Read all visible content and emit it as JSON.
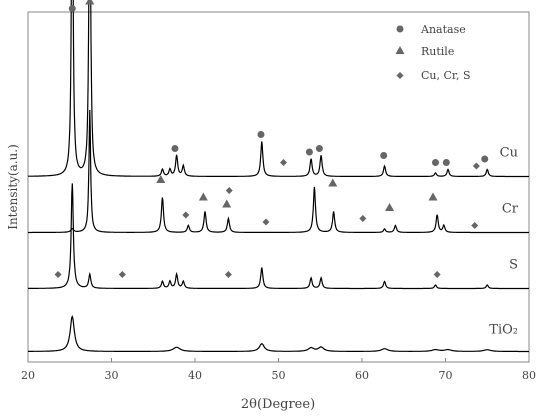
{
  "chart_data": {
    "type": "line",
    "title": "",
    "xlabel": "2θ(Degree)",
    "ylabel": "Intensity(a.u.)",
    "xlim": [
      20,
      80
    ],
    "x_ticks": [
      "20",
      "30",
      "40",
      "50",
      "60",
      "70",
      "80"
    ],
    "grid": false,
    "legend": {
      "placement": "top-right",
      "entries": [
        {
          "label": "Anatase",
          "marker": "circle"
        },
        {
          "label": "Rutile",
          "marker": "triangle"
        },
        {
          "label": "Cu, Cr, S",
          "marker": "diamond"
        }
      ]
    },
    "series": [
      {
        "name": "Cu",
        "baseline": 0.53,
        "peaks": [
          {
            "x": 25.3,
            "h": 0.97,
            "w": 0.12
          },
          {
            "x": 27.4,
            "h": 0.99,
            "w": 0.12
          },
          {
            "x": 36.1,
            "h": 0.02,
            "w": 0.15
          },
          {
            "x": 37.0,
            "h": 0.02,
            "w": 0.15
          },
          {
            "x": 37.8,
            "h": 0.06,
            "w": 0.15
          },
          {
            "x": 38.6,
            "h": 0.03,
            "w": 0.15
          },
          {
            "x": 48.0,
            "h": 0.1,
            "w": 0.15
          },
          {
            "x": 53.9,
            "h": 0.05,
            "w": 0.15
          },
          {
            "x": 55.1,
            "h": 0.06,
            "w": 0.15
          },
          {
            "x": 62.7,
            "h": 0.03,
            "w": 0.15
          },
          {
            "x": 68.8,
            "h": 0.01,
            "w": 0.15
          },
          {
            "x": 70.3,
            "h": 0.02,
            "w": 0.15
          },
          {
            "x": 75.0,
            "h": 0.02,
            "w": 0.15
          }
        ]
      },
      {
        "name": "Cr",
        "baseline": 0.37,
        "peaks": [
          {
            "x": 25.3,
            "h": 0.01,
            "w": 0.2
          },
          {
            "x": 27.4,
            "h": 0.35,
            "w": 0.12
          },
          {
            "x": 36.1,
            "h": 0.1,
            "w": 0.15
          },
          {
            "x": 39.2,
            "h": 0.02,
            "w": 0.15
          },
          {
            "x": 41.2,
            "h": 0.06,
            "w": 0.15
          },
          {
            "x": 44.0,
            "h": 0.04,
            "w": 0.15
          },
          {
            "x": 54.3,
            "h": 0.13,
            "w": 0.15
          },
          {
            "x": 56.6,
            "h": 0.06,
            "w": 0.15
          },
          {
            "x": 62.7,
            "h": 0.01,
            "w": 0.15
          },
          {
            "x": 64.0,
            "h": 0.02,
            "w": 0.15
          },
          {
            "x": 69.0,
            "h": 0.05,
            "w": 0.15
          },
          {
            "x": 69.8,
            "h": 0.02,
            "w": 0.15
          }
        ]
      },
      {
        "name": "S",
        "baseline": 0.21,
        "peaks": [
          {
            "x": 25.3,
            "h": 0.3,
            "w": 0.15
          },
          {
            "x": 27.4,
            "h": 0.04,
            "w": 0.15
          },
          {
            "x": 36.1,
            "h": 0.02,
            "w": 0.15
          },
          {
            "x": 37.0,
            "h": 0.02,
            "w": 0.15
          },
          {
            "x": 37.8,
            "h": 0.04,
            "w": 0.15
          },
          {
            "x": 38.6,
            "h": 0.02,
            "w": 0.15
          },
          {
            "x": 48.0,
            "h": 0.06,
            "w": 0.15
          },
          {
            "x": 53.9,
            "h": 0.03,
            "w": 0.15
          },
          {
            "x": 55.1,
            "h": 0.03,
            "w": 0.15
          },
          {
            "x": 62.7,
            "h": 0.02,
            "w": 0.15
          },
          {
            "x": 68.8,
            "h": 0.01,
            "w": 0.15
          },
          {
            "x": 75.0,
            "h": 0.01,
            "w": 0.15
          }
        ]
      },
      {
        "name": "TiO₂",
        "baseline": 0.03,
        "peaks": [
          {
            "x": 25.3,
            "h": 0.1,
            "w": 0.3
          },
          {
            "x": 37.8,
            "h": 0.012,
            "w": 0.5
          },
          {
            "x": 48.0,
            "h": 0.022,
            "w": 0.35
          },
          {
            "x": 53.9,
            "h": 0.01,
            "w": 0.4
          },
          {
            "x": 55.1,
            "h": 0.012,
            "w": 0.4
          },
          {
            "x": 62.7,
            "h": 0.008,
            "w": 0.45
          },
          {
            "x": 68.8,
            "h": 0.005,
            "w": 0.5
          },
          {
            "x": 70.3,
            "h": 0.005,
            "w": 0.5
          },
          {
            "x": 75.0,
            "h": 0.005,
            "w": 0.5
          }
        ]
      }
    ],
    "markers": [
      {
        "type": "circle",
        "x": 25.3,
        "y": 1.01
      },
      {
        "type": "triangle",
        "x": 27.4,
        "y": 1.03
      },
      {
        "type": "circle",
        "x": 37.6,
        "y": 0.61
      },
      {
        "type": "circle",
        "x": 47.9,
        "y": 0.65
      },
      {
        "type": "diamond",
        "x": 50.6,
        "y": 0.57
      },
      {
        "type": "circle",
        "x": 53.7,
        "y": 0.6
      },
      {
        "type": "circle",
        "x": 54.9,
        "y": 0.61
      },
      {
        "type": "circle",
        "x": 62.6,
        "y": 0.59
      },
      {
        "type": "circle",
        "x": 68.8,
        "y": 0.57
      },
      {
        "type": "circle",
        "x": 70.1,
        "y": 0.57
      },
      {
        "type": "circle",
        "x": 74.7,
        "y": 0.58
      },
      {
        "type": "diamond",
        "x": 73.7,
        "y": 0.56
      },
      {
        "type": "triangle",
        "x": 35.9,
        "y": 0.52
      },
      {
        "type": "diamond",
        "x": 38.9,
        "y": 0.42
      },
      {
        "type": "triangle",
        "x": 41.0,
        "y": 0.47
      },
      {
        "type": "triangle",
        "x": 43.8,
        "y": 0.45
      },
      {
        "type": "diamond",
        "x": 44.1,
        "y": 0.49
      },
      {
        "type": "diamond",
        "x": 48.5,
        "y": 0.4
      },
      {
        "type": "triangle",
        "x": 56.5,
        "y": 0.51
      },
      {
        "type": "diamond",
        "x": 60.1,
        "y": 0.41
      },
      {
        "type": "triangle",
        "x": 63.3,
        "y": 0.44
      },
      {
        "type": "triangle",
        "x": 68.5,
        "y": 0.47
      },
      {
        "type": "diamond",
        "x": 73.5,
        "y": 0.39
      },
      {
        "type": "diamond",
        "x": 23.6,
        "y": 0.25
      },
      {
        "type": "diamond",
        "x": 31.3,
        "y": 0.25
      },
      {
        "type": "diamond",
        "x": 44.0,
        "y": 0.25
      },
      {
        "type": "diamond",
        "x": 69.0,
        "y": 0.25
      }
    ],
    "colors": {
      "line": "#000000",
      "marker": "#666666",
      "axis": "#888888",
      "text": "#444444"
    }
  }
}
